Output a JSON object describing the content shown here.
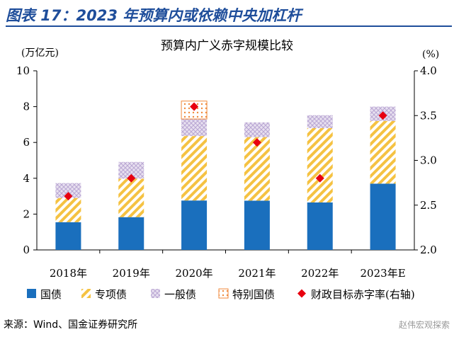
{
  "header": {
    "title": "图表 17：2023 年预算内或依赖中央加杠杆"
  },
  "footer": {
    "source": "来源：Wind、国金证券研究所"
  },
  "watermark": "赵伟宏观探索",
  "chart_data": {
    "type": "bar",
    "title": "预算内广义赤字规模比较",
    "ylabel": "(万亿元)",
    "y2label": "(%)",
    "ylim": [
      0,
      10
    ],
    "y2lim": [
      2.0,
      4.0
    ],
    "yticks": [
      "0",
      "2",
      "4",
      "6",
      "8",
      "10"
    ],
    "y2ticks": [
      "2.0",
      "2.5",
      "3.0",
      "3.5",
      "4.0"
    ],
    "categories": [
      "2018年",
      "2019年",
      "2020年",
      "2021年",
      "2022年",
      "2023年E"
    ],
    "series": [
      {
        "name": "国债",
        "type": "stacked_bar",
        "color": "#1a6fbd",
        "values": [
          1.55,
          1.83,
          2.76,
          2.75,
          2.65,
          3.7
        ]
      },
      {
        "name": "专项债",
        "type": "stacked_bar",
        "color": "#f5c242",
        "values": [
          1.35,
          2.15,
          3.6,
          3.55,
          4.15,
          3.5
        ]
      },
      {
        "name": "一般债",
        "type": "stacked_bar",
        "color": "#c8b8dc",
        "values": [
          0.83,
          0.93,
          0.95,
          0.82,
          0.72,
          0.8
        ]
      },
      {
        "name": "特别国债",
        "type": "stacked_bar",
        "color": "#f08a3c",
        "values": [
          0,
          0,
          1.0,
          0,
          0,
          0
        ]
      },
      {
        "name": "财政目标赤字率(右轴)",
        "type": "marker",
        "axis": "right",
        "color": "#e8000f",
        "values": [
          2.6,
          2.8,
          3.6,
          3.2,
          2.8,
          3.5
        ]
      }
    ],
    "legend_position": "bottom",
    "grid": false
  }
}
